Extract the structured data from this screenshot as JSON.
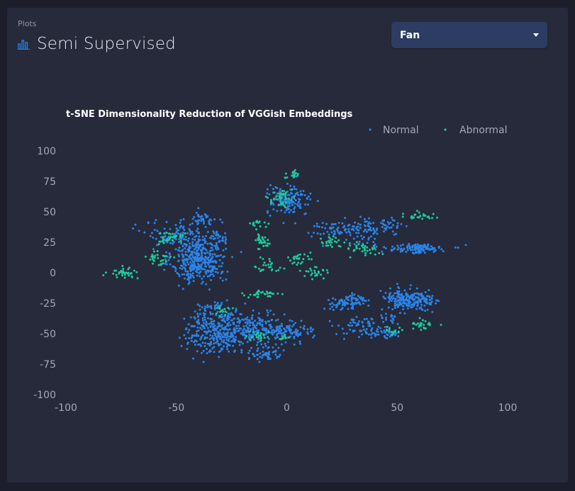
{
  "breadcrumb": "Plots",
  "header": {
    "title": "Semi Supervised",
    "icon": "bar-chart-icon"
  },
  "machine_select": {
    "value": "Fan"
  },
  "colors": {
    "normal": "#2b83e6",
    "abnormal": "#1ec99b",
    "background": "#1c1f2b",
    "panel": "#262a3b"
  },
  "chart_data": {
    "type": "scatter",
    "title": "t-SNE Dimensionality Reduction of VGGish Embeddings",
    "xlim": [
      -100,
      100
    ],
    "ylim": [
      -100,
      100
    ],
    "xticks": [
      "-100",
      "-50",
      "0",
      "50",
      "100"
    ],
    "yticks": [
      "100",
      "75",
      "50",
      "25",
      "0",
      "-25",
      "-50",
      "-75",
      "-100"
    ],
    "grid": false,
    "legend_position": "top-right",
    "series": [
      {
        "name": "Normal",
        "clusters": [
          {
            "cx": -40,
            "cy": 10,
            "sx": 6,
            "sy": 9,
            "n": 380
          },
          {
            "cx": -48,
            "cy": 30,
            "sx": 8,
            "sy": 6,
            "n": 120
          },
          {
            "cx": -38,
            "cy": 44,
            "sx": 3,
            "sy": 3,
            "n": 40
          },
          {
            "cx": -31,
            "cy": 29,
            "sx": 3,
            "sy": 3,
            "n": 35
          },
          {
            "cx": -30,
            "cy": -48,
            "sx": 8,
            "sy": 9,
            "n": 380
          },
          {
            "cx": -13,
            "cy": -45,
            "sx": 6,
            "sy": 6,
            "n": 110
          },
          {
            "cx": 0,
            "cy": -48,
            "sx": 6,
            "sy": 4,
            "n": 110
          },
          {
            "cx": -9,
            "cy": -66,
            "sx": 4,
            "sy": 3,
            "n": 55
          },
          {
            "cx": -34,
            "cy": -28,
            "sx": 3,
            "sy": 2,
            "n": 25
          },
          {
            "cx": 1,
            "cy": 59,
            "sx": 5,
            "sy": 6,
            "n": 140
          },
          {
            "cx": 21,
            "cy": 36,
            "sx": 7,
            "sy": 3,
            "n": 50
          },
          {
            "cx": 36,
            "cy": 36,
            "sx": 5,
            "sy": 5,
            "n": 70
          },
          {
            "cx": 45,
            "cy": 37,
            "sx": 3,
            "sy": 3,
            "n": 30
          },
          {
            "cx": 59,
            "cy": 20,
            "sx": 7,
            "sy": 2,
            "n": 120
          },
          {
            "cx": 53,
            "cy": -22,
            "sx": 5,
            "sy": 5,
            "n": 170
          },
          {
            "cx": 63,
            "cy": -25,
            "sx": 3,
            "sy": 5,
            "n": 50
          },
          {
            "cx": 30,
            "cy": -23,
            "sx": 4,
            "sy": 3,
            "n": 60
          },
          {
            "cx": 22,
            "cy": -26,
            "sx": 3,
            "sy": 3,
            "n": 30
          },
          {
            "cx": 33,
            "cy": -45,
            "sx": 5,
            "sy": 4,
            "n": 60
          },
          {
            "cx": 44,
            "cy": -49,
            "sx": 4,
            "sy": 3,
            "n": 40
          },
          {
            "cx": 46,
            "cy": -38,
            "sx": 3,
            "sy": 2,
            "n": 20
          }
        ]
      },
      {
        "name": "Abnormal",
        "clusters": [
          {
            "cx": -74,
            "cy": 0,
            "sx": 3,
            "sy": 2,
            "n": 35
          },
          {
            "cx": -58,
            "cy": 12,
            "sx": 3,
            "sy": 3,
            "n": 30
          },
          {
            "cx": -55,
            "cy": 28,
            "sx": 3,
            "sy": 3,
            "n": 25
          },
          {
            "cx": 3,
            "cy": 80,
            "sx": 1.5,
            "sy": 1.5,
            "n": 20
          },
          {
            "cx": -2,
            "cy": 62,
            "sx": 3,
            "sy": 4,
            "n": 40
          },
          {
            "cx": -11,
            "cy": 25,
            "sx": 2,
            "sy": 3,
            "n": 30
          },
          {
            "cx": -12,
            "cy": 40,
            "sx": 2,
            "sy": 2,
            "n": 15
          },
          {
            "cx": -8,
            "cy": 5,
            "sx": 3,
            "sy": 3,
            "n": 25
          },
          {
            "cx": -10,
            "cy": -17,
            "sx": 4,
            "sy": 1.5,
            "n": 30
          },
          {
            "cx": 5,
            "cy": 11,
            "sx": 3,
            "sy": 2,
            "n": 25
          },
          {
            "cx": 12,
            "cy": 0,
            "sx": 3,
            "sy": 3,
            "n": 25
          },
          {
            "cx": 19,
            "cy": 25,
            "sx": 3,
            "sy": 2,
            "n": 25
          },
          {
            "cx": 34,
            "cy": 20,
            "sx": 4,
            "sy": 3,
            "n": 35
          },
          {
            "cx": 61,
            "cy": 47,
            "sx": 4,
            "sy": 2,
            "n": 25
          },
          {
            "cx": 62,
            "cy": -42,
            "sx": 3,
            "sy": 2,
            "n": 25
          },
          {
            "cx": 49,
            "cy": -48,
            "sx": 2,
            "sy": 2,
            "n": 15
          },
          {
            "cx": -13,
            "cy": -52,
            "sx": 2,
            "sy": 2,
            "n": 20
          },
          {
            "cx": -2,
            "cy": -53,
            "sx": 2,
            "sy": 1.5,
            "n": 10
          },
          {
            "cx": -29,
            "cy": -31,
            "sx": 2,
            "sy": 2,
            "n": 15
          },
          {
            "cx": -48,
            "cy": 31,
            "sx": 1.5,
            "sy": 1.5,
            "n": 10
          }
        ]
      }
    ]
  }
}
